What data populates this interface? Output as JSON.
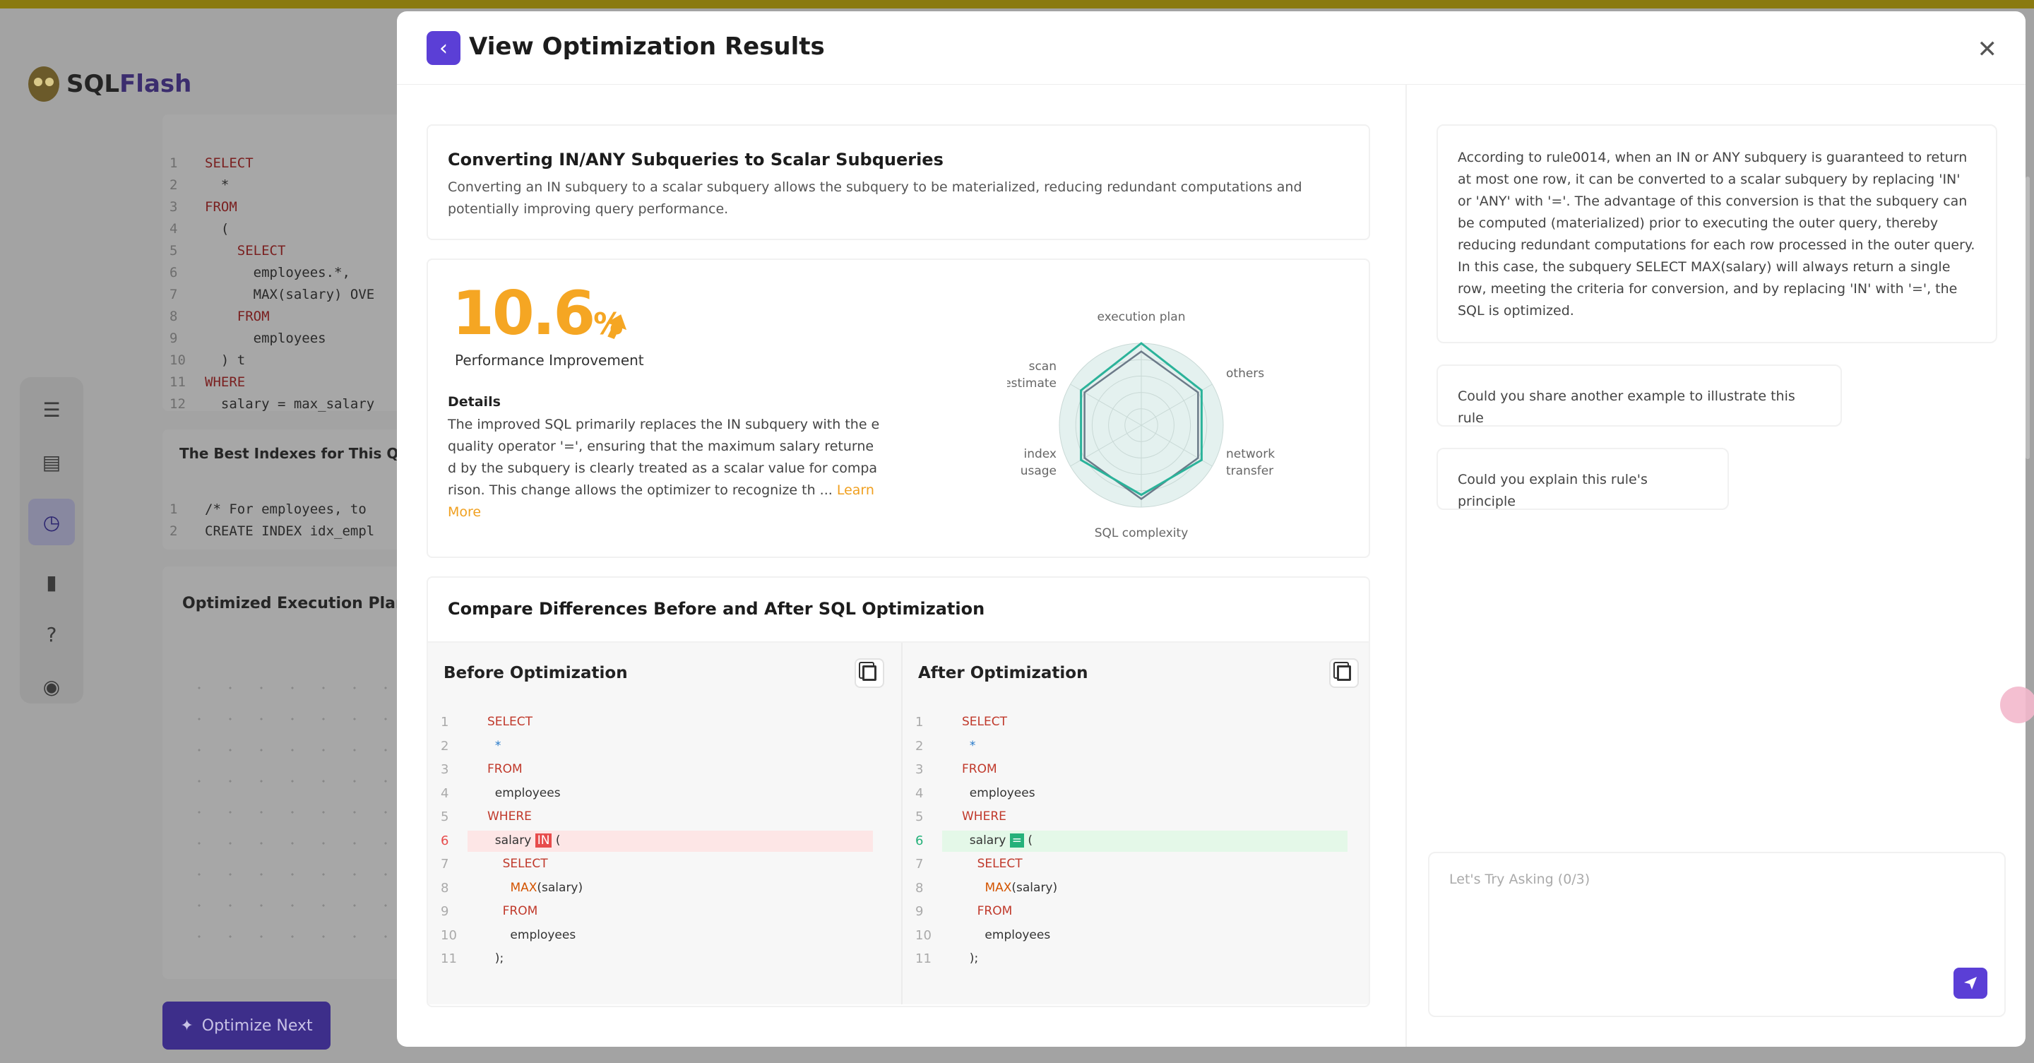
{
  "background": {
    "logo_sql": "SQL",
    "logo_flash": "Flash",
    "code_lines": [
      {
        "n": "1",
        "text": "SELECT",
        "kw": true
      },
      {
        "n": "2",
        "text": "  *",
        "kw": false
      },
      {
        "n": "3",
        "text": "FROM",
        "kw": true
      },
      {
        "n": "4",
        "text": "  (",
        "kw": false
      },
      {
        "n": "5",
        "text": "    SELECT",
        "kw": true
      },
      {
        "n": "6",
        "text": "      employees.*,",
        "kw": false
      },
      {
        "n": "7",
        "text": "      MAX(salary) OVE",
        "kw": false
      },
      {
        "n": "8",
        "text": "    FROM",
        "kw": true
      },
      {
        "n": "9",
        "text": "      employees",
        "kw": false
      },
      {
        "n": "10",
        "text": "  ) t",
        "kw": false
      },
      {
        "n": "11",
        "text": "WHERE",
        "kw": true
      },
      {
        "n": "12",
        "text": "  salary = max_salary",
        "kw": false
      }
    ],
    "indexes_title": "The Best Indexes for This Query",
    "index_lines": [
      {
        "n": "1",
        "text": "/* For employees, to"
      },
      {
        "n": "2",
        "text": "CREATE INDEX idx_empl"
      }
    ],
    "plan_title": "Optimized Execution Plan",
    "optimize_next": "Optimize Next"
  },
  "modal": {
    "title": "View Optimization Results",
    "rule": {
      "title": "Converting IN/ANY Subqueries to Scalar Subqueries",
      "description": "Converting an IN subquery to a scalar subquery allows the subquery to be materialized, reducing redundant computations and potentially improving query performance."
    },
    "performance": {
      "value": "10.6",
      "unit": "%",
      "label": "Performance Improvement",
      "details_title": "Details",
      "details_text": "The improved SQL primarily replaces the IN subquery with the equality operator '=', ensuring that the maximum salary returned by the subquery is clearly treated as a scalar value for comparison. This change allows the optimizer to recognize th ... ",
      "learn_more": "Learn More"
    },
    "radar": {
      "axes": [
        "execution plan",
        "others",
        "network transfer",
        "SQL complexity",
        "index usage",
        "scan estimate"
      ],
      "after_values": [
        1.0,
        0.85,
        0.85,
        0.85,
        0.85,
        0.85
      ],
      "before_values": [
        0.9,
        0.8,
        0.8,
        0.9,
        0.8,
        0.8
      ],
      "after_color": "#2bb39a",
      "before_color": "#6c7a89"
    },
    "compare": {
      "title": "Compare Differences Before and After SQL Optimization",
      "before_title": "Before Optimization",
      "after_title": "After Optimization",
      "before_lines": [
        {
          "n": "1",
          "html": "<span class='kw'>SELECT</span>"
        },
        {
          "n": "2",
          "html": "  <span class='str'>*</span>"
        },
        {
          "n": "3",
          "html": "<span class='kw'>FROM</span>"
        },
        {
          "n": "4",
          "html": "  employees"
        },
        {
          "n": "5",
          "html": "<span class='kw'>WHERE</span>"
        },
        {
          "n": "6",
          "html": "  salary <span class='tag-red'>IN</span> (",
          "hl": "red"
        },
        {
          "n": "7",
          "html": "    <span class='kw'>SELECT</span>"
        },
        {
          "n": "8",
          "html": "      <span class='fn'>MAX</span>(salary)"
        },
        {
          "n": "9",
          "html": "    <span class='kw'>FROM</span>"
        },
        {
          "n": "10",
          "html": "      employees"
        },
        {
          "n": "11",
          "html": "  );"
        }
      ],
      "after_lines": [
        {
          "n": "1",
          "html": "<span class='kw'>SELECT</span>"
        },
        {
          "n": "2",
          "html": "  <span class='str'>*</span>"
        },
        {
          "n": "3",
          "html": "<span class='kw'>FROM</span>"
        },
        {
          "n": "4",
          "html": "  employees"
        },
        {
          "n": "5",
          "html": "<span class='kw'>WHERE</span>"
        },
        {
          "n": "6",
          "html": "  salary <span class='tag-green'>=</span> (",
          "hl": "green"
        },
        {
          "n": "7",
          "html": "    <span class='kw'>SELECT</span>"
        },
        {
          "n": "8",
          "html": "      <span class='fn'>MAX</span>(salary)"
        },
        {
          "n": "9",
          "html": "    <span class='kw'>FROM</span>"
        },
        {
          "n": "10",
          "html": "      employees"
        },
        {
          "n": "11",
          "html": "  );"
        }
      ]
    },
    "chat": {
      "explanation": "According to rule0014, when an IN or ANY subquery is guaranteed to return at most one row, it can be converted to a scalar subquery by replacing 'IN' or 'ANY' with '='. The advantage of this conversion is that the subquery can be computed (materialized) prior to executing the outer query, thereby reducing redundant computations for each row processed in the outer query. In this case, the subquery SELECT MAX(salary) will always return a single row, meeting the criteria for conversion, and by replacing 'IN' with '=', the SQL is optimized.",
      "suggestion_1": "Could you share another example to illustrate this rule",
      "suggestion_2": "Could you explain this rule's principle",
      "placeholder": "Let's Try Asking (0/3)"
    }
  },
  "colors": {
    "accent": "#5b3fd6",
    "performance": "#f5a623"
  }
}
